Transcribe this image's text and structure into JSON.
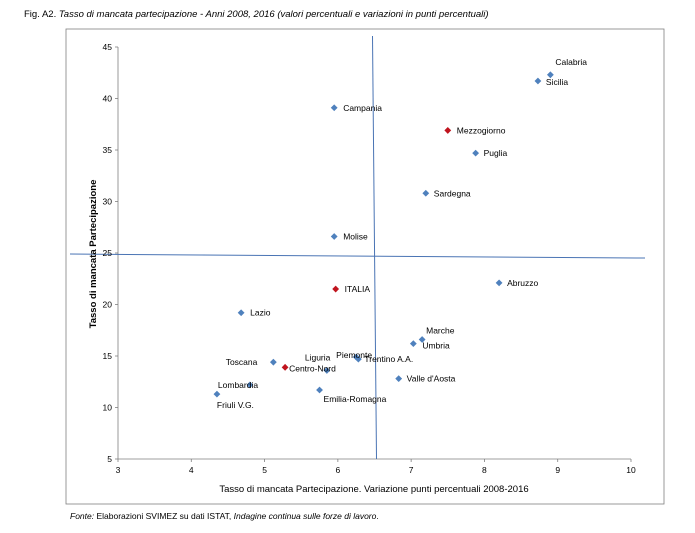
{
  "figure": {
    "label": "Fig. A2.",
    "title": "Tasso di mancata partecipazione - Anni 2008, 2016 (valori percentuali e variazioni in punti percentuali)"
  },
  "source": {
    "prefix": "Fonte:",
    "text": "Elaborazioni SVIMEZ su dati ISTAT,",
    "italic": "Indagine continua sulle forze di lavoro",
    "suffix": "."
  },
  "colors": {
    "region": "#4f81bd",
    "aggregate": "#c0141e",
    "axis_line": "#4a74b4",
    "frame": "#7f7f7f"
  },
  "chart_data": {
    "type": "scatter",
    "xlabel": "Tasso di mancata Partecipazione. Variazione punti percentuali 2008-2016",
    "ylabel": "Tasso di mancata Partecipazione",
    "xlim": [
      3,
      10
    ],
    "ylim": [
      5,
      45
    ],
    "xticks": [
      3,
      4,
      5,
      6,
      7,
      8,
      9,
      10
    ],
    "yticks": [
      5,
      10,
      15,
      20,
      25,
      30,
      35,
      40,
      45
    ],
    "grid": false,
    "reference_lines": {
      "vertical_x": 6.5,
      "horizontal_y": 24.8
    },
    "points": [
      {
        "name": "Calabria",
        "x": 8.9,
        "y": 42.3,
        "kind": "region"
      },
      {
        "name": "Sicilia",
        "x": 8.73,
        "y": 41.7,
        "kind": "region"
      },
      {
        "name": "Campania",
        "x": 5.95,
        "y": 39.1,
        "kind": "region"
      },
      {
        "name": "Mezzogiorno",
        "x": 7.5,
        "y": 36.9,
        "kind": "aggregate"
      },
      {
        "name": "Puglia",
        "x": 7.88,
        "y": 34.7,
        "kind": "region"
      },
      {
        "name": "Sardegna",
        "x": 7.2,
        "y": 30.8,
        "kind": "region"
      },
      {
        "name": "Molise",
        "x": 5.95,
        "y": 26.6,
        "kind": "region"
      },
      {
        "name": "Abruzzo",
        "x": 8.2,
        "y": 22.1,
        "kind": "region"
      },
      {
        "name": "ITALIA",
        "x": 5.97,
        "y": 21.5,
        "kind": "aggregate"
      },
      {
        "name": "Lazio",
        "x": 4.68,
        "y": 19.2,
        "kind": "region"
      },
      {
        "name": "Marche",
        "x": 7.15,
        "y": 16.6,
        "kind": "region"
      },
      {
        "name": "Umbria",
        "x": 7.03,
        "y": 16.2,
        "kind": "region"
      },
      {
        "name": "Piemonte",
        "x": 6.25,
        "y": 14.9,
        "kind": "region"
      },
      {
        "name": "Trentino A.A.",
        "x": 6.28,
        "y": 14.7,
        "kind": "region"
      },
      {
        "name": "Toscana",
        "x": 5.12,
        "y": 14.4,
        "kind": "region"
      },
      {
        "name": "Centro-Nord",
        "x": 5.28,
        "y": 13.9,
        "kind": "aggregate"
      },
      {
        "name": "Liguria",
        "x": 5.85,
        "y": 13.6,
        "kind": "region"
      },
      {
        "name": "Valle d'Aosta",
        "x": 6.83,
        "y": 12.8,
        "kind": "region"
      },
      {
        "name": "Lombardia",
        "x": 4.8,
        "y": 12.2,
        "kind": "region"
      },
      {
        "name": "Emilia-Romagna",
        "x": 5.75,
        "y": 11.7,
        "kind": "region"
      },
      {
        "name": "Friuli V.G.",
        "x": 4.35,
        "y": 11.3,
        "kind": "region"
      }
    ]
  }
}
